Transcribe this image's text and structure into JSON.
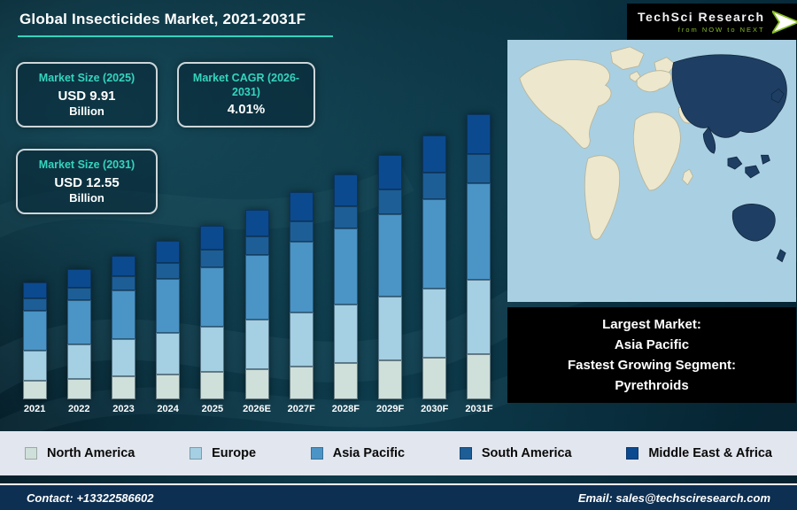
{
  "title": "Global Insecticides Market, 2021-2031F",
  "logo": {
    "brand": "TechSci Research",
    "tagline": "from NOW to NEXT"
  },
  "stats": [
    {
      "label": "Market Size (2025)",
      "value": "USD 9.91",
      "unit": "Billion"
    },
    {
      "label": "Market CAGR (2026-2031)",
      "value": "4.01%",
      "unit": ""
    },
    {
      "label": "Market Size (2031)",
      "value": "USD 12.55",
      "unit": "Billion"
    }
  ],
  "chart_data": {
    "type": "bar",
    "stacked": true,
    "title": "Global Insecticides Market, 2021-2031F",
    "unit": "USD Billion",
    "categories": [
      "2021",
      "2022",
      "2023",
      "2024",
      "2025",
      "2026E",
      "2027F",
      "2028F",
      "2029F",
      "2030F",
      "2031F"
    ],
    "series": [
      {
        "name": "North America",
        "color": "#cfe0da",
        "values": [
          1.37,
          1.42,
          1.47,
          1.52,
          1.58,
          1.64,
          1.71,
          1.78,
          1.85,
          1.92,
          2.0
        ]
      },
      {
        "name": "Europe",
        "color": "#a5cfe3",
        "values": [
          2.23,
          2.31,
          2.39,
          2.48,
          2.58,
          2.68,
          2.78,
          2.89,
          3.01,
          3.13,
          3.26
        ]
      },
      {
        "name": "Asia Pacific",
        "color": "#4b94c6",
        "values": [
          2.91,
          3.02,
          3.13,
          3.25,
          3.37,
          3.5,
          3.64,
          3.78,
          3.94,
          4.1,
          4.27
        ]
      },
      {
        "name": "South America",
        "color": "#1d5e97",
        "values": [
          0.86,
          0.89,
          0.92,
          0.96,
          0.99,
          1.03,
          1.07,
          1.11,
          1.16,
          1.21,
          1.26
        ]
      },
      {
        "name": "Middle East & Africa",
        "color": "#0c4a8f",
        "values": [
          1.2,
          1.24,
          1.29,
          1.34,
          1.39,
          1.44,
          1.5,
          1.56,
          1.62,
          1.69,
          1.76
        ]
      }
    ],
    "totals": [
      8.57,
      8.88,
      9.2,
      9.55,
      9.91,
      10.29,
      10.7,
      11.12,
      11.58,
      12.05,
      12.55
    ],
    "layout": {
      "legend_position": "bottom",
      "y_axis_visible": false,
      "x_axis_visible": true,
      "baseline_cropped": true
    }
  },
  "map_caption": {
    "lines": [
      "Largest Market:",
      "Asia Pacific",
      "Fastest Growing Segment:",
      "Pyrethroids"
    ]
  },
  "footer": {
    "contact": "Contact: +13322586602",
    "email": "Email: sales@techsciresearch.com"
  },
  "colors": {
    "accent_teal": "#35d4bd",
    "logo_green": "#86bc25",
    "legend_bg": "#e2e6ee",
    "footer_bg": "#0d2f52",
    "map_ocean": "#a9cfe2",
    "map_land": "#ece7cd",
    "map_highlight": "#1e3f63"
  }
}
